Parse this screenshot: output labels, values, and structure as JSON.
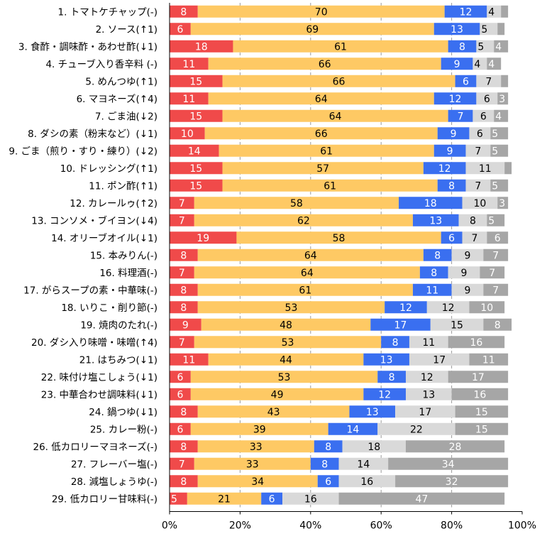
{
  "chart_data": {
    "type": "bar",
    "orientation": "horizontal",
    "stacked": true,
    "normalized": "percent",
    "title": "",
    "xlabel": "",
    "ylabel": "",
    "xlim": [
      0,
      100
    ],
    "x_ticks": [
      "0%",
      "20%",
      "40%",
      "60%",
      "80%",
      "100%"
    ],
    "grid": "vertical dashed",
    "legend": "none",
    "categories": [
      "1. トマトケチャップ(-)",
      "2. ソース(↑1)",
      "3. 食酢・調味酢・あわせ酢(↓1)",
      "4. チューブ入り香辛料 (-)",
      "5. めんつゆ(↑1)",
      "6. マヨネーズ(↑4)",
      "7. ごま油(↓2)",
      "8. ダシの素（粉末など）(↓1)",
      "9. ごま（煎り・すり・練り）(↓2)",
      "10. ドレッシング(↑1)",
      "11. ポン酢(↑1)",
      "12. カレールゥ(↑2)",
      "13. コンソメ・ブイヨン(↓4)",
      "14. オリーブオイル(↓1)",
      "15. 本みりん(-)",
      "16. 料理酒(-)",
      "17. がらスープの素・中華味(-)",
      "18. いりこ・削り節(-)",
      "19. 焼肉のたれ(-)",
      "20. ダシ入り味噌・味噌(↑4)",
      "21. はちみつ(↓1)",
      "22. 味付け塩こしょう(↓1)",
      "23. 中華合わせ調味料(↓1)",
      "24. 鍋つゆ(↓1)",
      "25. カレー粉(-)",
      "26. 低カロリーマヨネーズ(-)",
      "27. フレーバー塩(-)",
      "28. 減塩しょうゆ(-)",
      "29. 低カロリー甘味料(-)"
    ],
    "series": [
      {
        "color": "#f04a4a",
        "label_color": "#ffffff",
        "values": [
          8,
          6,
          18,
          11,
          15,
          11,
          15,
          10,
          14,
          15,
          15,
          7,
          7,
          19,
          8,
          7,
          8,
          8,
          9,
          7,
          11,
          6,
          6,
          8,
          6,
          8,
          7,
          8,
          5
        ]
      },
      {
        "color": "#fec964",
        "label_color": "#000000",
        "values": [
          70,
          69,
          61,
          66,
          66,
          64,
          64,
          66,
          61,
          57,
          61,
          58,
          62,
          58,
          64,
          64,
          61,
          53,
          48,
          53,
          44,
          53,
          49,
          43,
          39,
          33,
          33,
          34,
          21
        ]
      },
      {
        "color": "#3a6ff0",
        "label_color": "#ffffff",
        "values": [
          12,
          13,
          8,
          9,
          6,
          12,
          7,
          9,
          9,
          12,
          8,
          18,
          13,
          6,
          8,
          8,
          11,
          12,
          17,
          8,
          13,
          8,
          12,
          13,
          14,
          8,
          8,
          6,
          6
        ]
      },
      {
        "color": "#d9d9d9",
        "label_color": "#000000",
        "values": [
          4,
          5,
          5,
          4,
          7,
          6,
          6,
          6,
          7,
          11,
          7,
          10,
          8,
          7,
          9,
          9,
          9,
          12,
          15,
          11,
          17,
          12,
          13,
          17,
          22,
          18,
          14,
          16,
          16
        ]
      },
      {
        "color": "#a6a6a6",
        "label_color": "#ffffff",
        "values": [
          2,
          2,
          4,
          4,
          2,
          3,
          4,
          5,
          5,
          2,
          5,
          3,
          5,
          6,
          7,
          7,
          7,
          10,
          8,
          16,
          11,
          17,
          16,
          15,
          15,
          28,
          34,
          32,
          47
        ],
        "printed_labels": [
          null,
          null,
          "4",
          "4",
          null,
          "3",
          "4",
          "5",
          "5",
          null,
          "5",
          "3",
          "5",
          "6",
          "7",
          "7",
          "7",
          "10",
          "8",
          "16",
          "11",
          "17",
          "16",
          "15",
          "15",
          "28",
          "34",
          "32",
          "47"
        ]
      }
    ]
  }
}
